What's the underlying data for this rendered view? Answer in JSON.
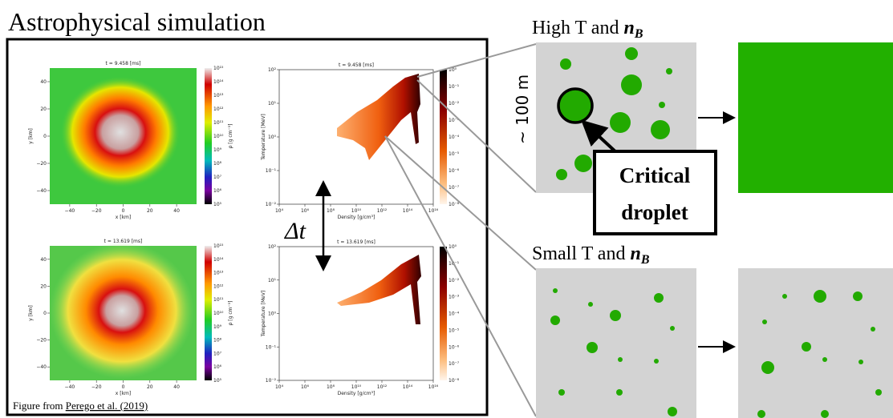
{
  "title": "Astrophysical simulation",
  "source": {
    "prefix": "Figure from",
    "link": "Perego et al. (2019)"
  },
  "delta_label": "Δt",
  "panels": [
    {
      "title": "t = 9.458 [ms]",
      "xlabel": "x [km]",
      "ylabel": "y [km]",
      "cbar_label": "ρ [g cm⁻³]",
      "xticks": [
        "−40",
        "−20",
        "0",
        "20",
        "40"
      ],
      "yticks": [
        "40",
        "20",
        "0",
        "−20",
        "−40"
      ],
      "cbar_ticks": [
        "10¹⁵",
        "10¹⁴",
        "10¹³",
        "10¹²",
        "10¹¹",
        "10¹⁰",
        "10⁹",
        "10⁸",
        "10⁷",
        "10⁶",
        "10⁵"
      ]
    },
    {
      "title": "t = 9.458 [ms]",
      "xlabel": "Density [g/cm³]",
      "ylabel": "Temperature [MeV]",
      "xticks": [
        "10⁴",
        "10⁶",
        "10⁸",
        "10¹⁰",
        "10¹²",
        "10¹⁴",
        "10¹⁶"
      ],
      "yticks": [
        "10²",
        "10¹",
        "10⁰",
        "10⁻¹",
        "10⁻²"
      ],
      "cbar_ticks": [
        "10⁰",
        "10⁻¹",
        "10⁻²",
        "10⁻³",
        "10⁻⁴",
        "10⁻⁵",
        "10⁻⁶",
        "10⁻⁷",
        "10⁻⁸"
      ]
    },
    {
      "title": "t = 13.619 [ms]",
      "xlabel": "x [km]",
      "ylabel": "y [km]",
      "cbar_label": "ρ [g cm⁻³]",
      "xticks": [
        "−40",
        "−20",
        "0",
        "20",
        "40"
      ],
      "yticks": [
        "40",
        "20",
        "0",
        "−20",
        "−40"
      ],
      "cbar_ticks": [
        "10¹⁵",
        "10¹⁴",
        "10¹³",
        "10¹²",
        "10¹¹",
        "10¹⁰",
        "10⁹",
        "10⁸",
        "10⁷",
        "10⁶",
        "10⁵"
      ]
    },
    {
      "title": "t = 13.619 [ms]",
      "xlabel": "Density [g/cm³]",
      "ylabel": "Temperature [MeV]",
      "xticks": [
        "10⁴",
        "10⁶",
        "10⁸",
        "10¹⁰",
        "10¹²",
        "10¹⁴",
        "10¹⁶"
      ],
      "yticks": [
        "10²",
        "10¹",
        "10⁰",
        "10⁻¹",
        "10⁻²"
      ],
      "cbar_ticks": [
        "10⁰",
        "10⁻¹",
        "10⁻²",
        "10⁻³",
        "10⁻⁴",
        "10⁻⁵",
        "10⁻⁶",
        "10⁻⁷",
        "10⁻⁸"
      ]
    }
  ],
  "right": {
    "high": {
      "prefix": "High T and ",
      "var": "n",
      "sub": "B"
    },
    "low": {
      "prefix": "Small T and ",
      "var": "n",
      "sub": "B"
    },
    "scale": "~ 100 m",
    "droplet": [
      "Critical",
      "droplet"
    ]
  }
}
